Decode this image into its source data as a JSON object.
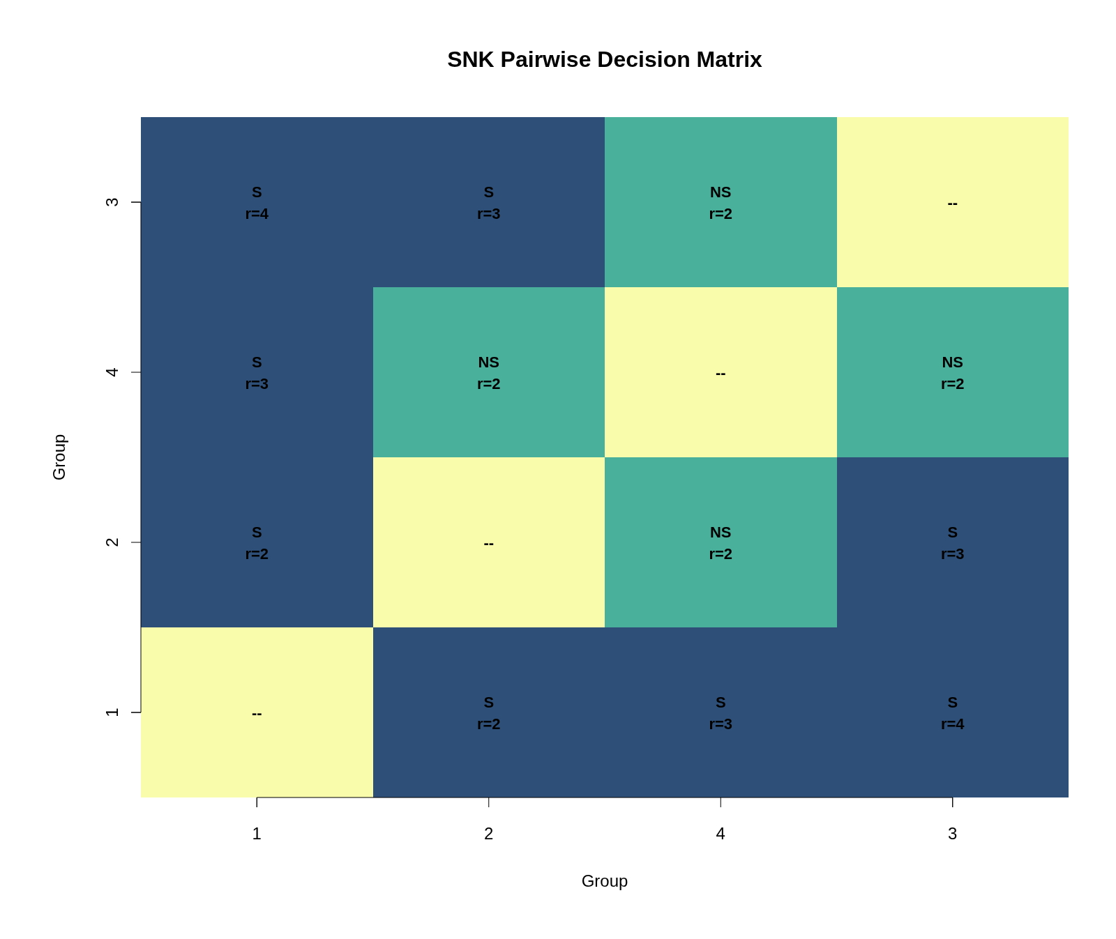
{
  "chart_data": {
    "type": "heatmap",
    "title": "SNK Pairwise Decision Matrix",
    "xlabel": "Group",
    "ylabel": "Group",
    "categories": [
      "1",
      "2",
      "4",
      "3"
    ],
    "y_categories": [
      "3",
      "4",
      "2",
      "1"
    ],
    "cells": [
      [
        4,
        3,
        2,
        null
      ],
      [
        3,
        2,
        null,
        2
      ],
      [
        2,
        null,
        2,
        3
      ],
      [
        null,
        2,
        3,
        4
      ]
    ],
    "cell_labels": [
      [
        "S\nr=4",
        "S\nr=3",
        "NS\nr=2",
        "--"
      ],
      [
        "S\nr=3",
        "NS\nr=2",
        "--",
        "NS\nr=2"
      ],
      [
        "S\nr=2",
        "--",
        "NS\nr=2",
        "S\nr=3"
      ],
      [
        "--",
        "S\nr=2",
        "S\nr=3",
        "S\nr=4"
      ]
    ],
    "colors": [
      [
        "#2e5078",
        "#2e5078",
        "#48b09b",
        "#f9fcab"
      ],
      [
        "#2e5078",
        "#48b09b",
        "#f9fcab",
        "#48b09b"
      ],
      [
        "#2e5078",
        "#f9fcab",
        "#48b09b",
        "#2e5078"
      ],
      [
        "#f9fcab",
        "#2e5078",
        "#2e5078",
        "#2e5078"
      ]
    ]
  }
}
